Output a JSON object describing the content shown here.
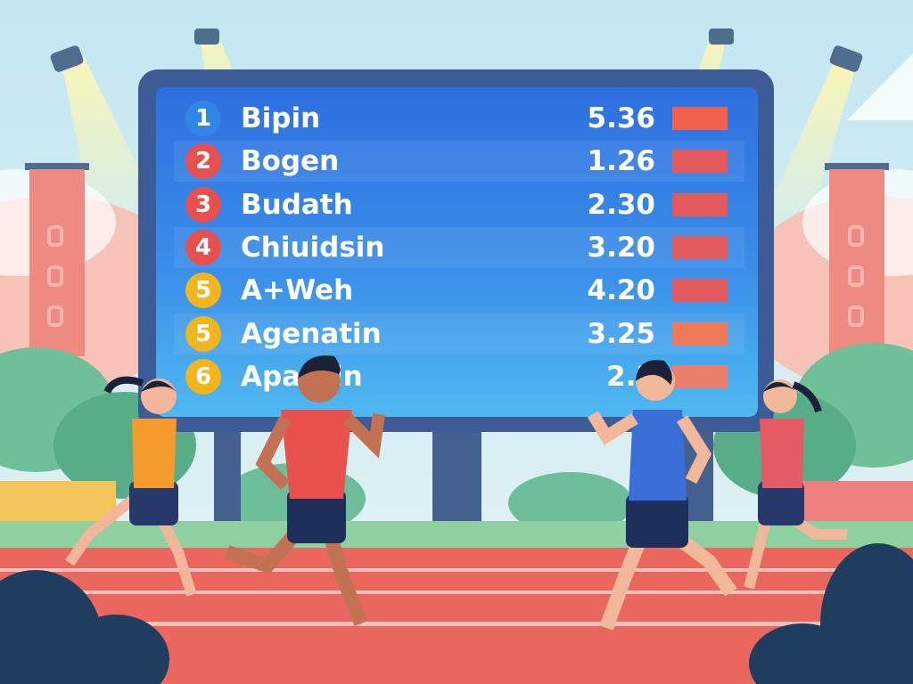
{
  "scoreboard": {
    "rows": [
      {
        "rank": "1",
        "name": "Bipin",
        "value": "5.36",
        "rank_color": "#2f86e8",
        "bar_color": "#f0604a"
      },
      {
        "rank": "2",
        "name": "Bogen",
        "value": "1.26",
        "rank_color": "#e8504e",
        "bar_color": "#e25a5e"
      },
      {
        "rank": "3",
        "name": "Budath",
        "value": "2.30",
        "rank_color": "#e8504e",
        "bar_color": "#e25a5e"
      },
      {
        "rank": "4",
        "name": "Chiuidsin",
        "value": "3.20",
        "rank_color": "#e8504e",
        "bar_color": "#e25a5e"
      },
      {
        "rank": "5",
        "name": "A+Weh",
        "value": "4.20",
        "rank_color": "#f2b51c",
        "bar_color": "#e25a5e"
      },
      {
        "rank": "5",
        "name": "Agenatin",
        "value": "3.25",
        "rank_color": "#f2b51c",
        "bar_color": "#ef7a5a"
      },
      {
        "rank": "6",
        "name": "Apantin",
        "value": "2.3",
        "rank_color": "#f2b51c",
        "bar_color": "#ea7e6a"
      }
    ]
  },
  "colors": {
    "track": "#e9675e",
    "sky": "#cdeaf3",
    "board_frame": "#3d5c97"
  }
}
